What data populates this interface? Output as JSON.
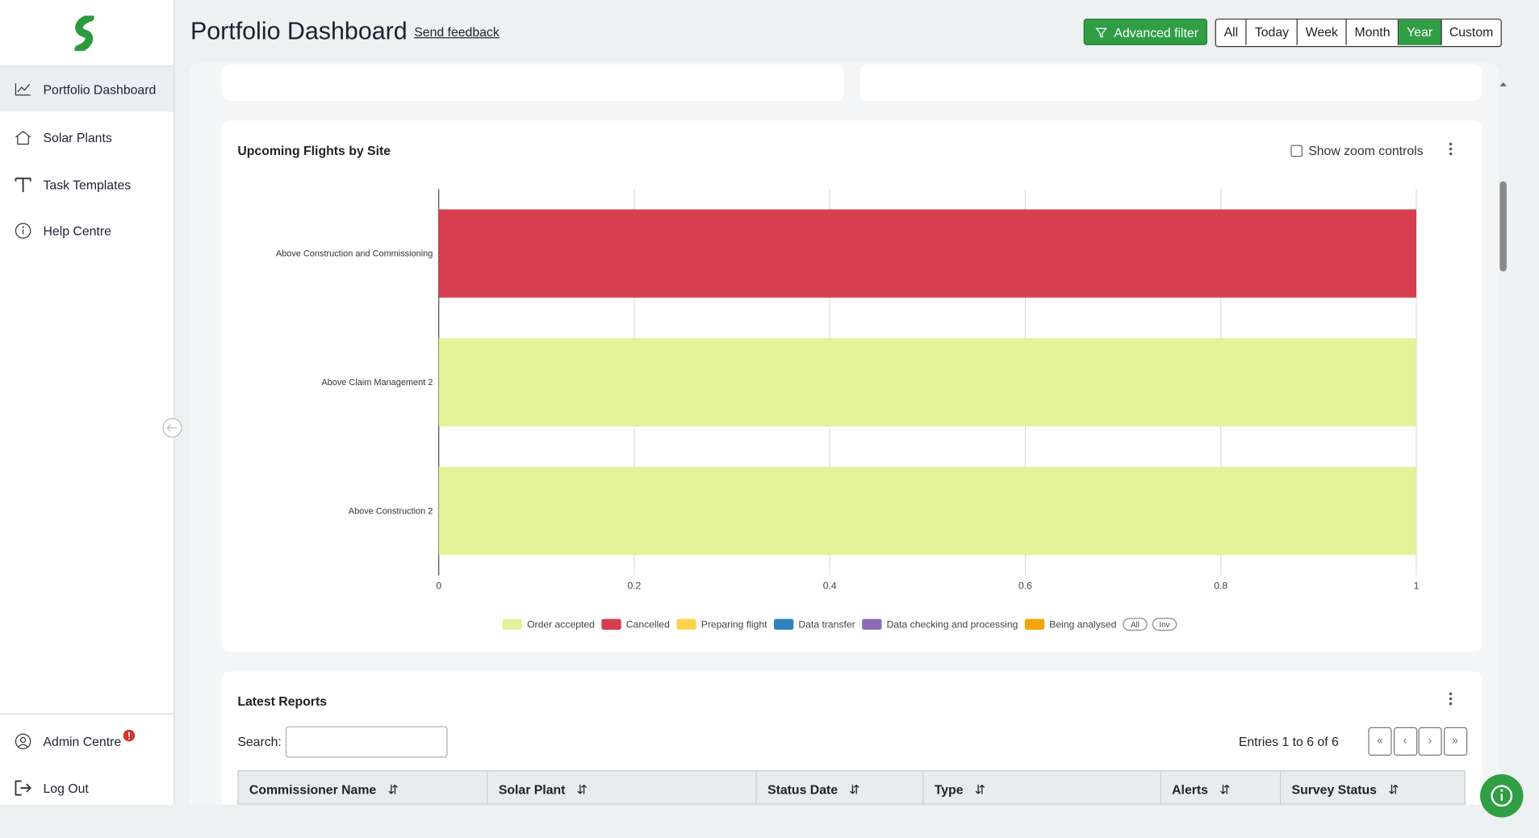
{
  "sidebar": {
    "items": [
      "Portfolio Dashboard",
      "Solar Plants",
      "Task Templates",
      "Help Centre"
    ],
    "bottom": [
      "Admin Centre",
      "Log Out"
    ]
  },
  "header": {
    "title": "Portfolio Dashboard",
    "feedback": "Send feedback",
    "filter": "Advanced filter",
    "ranges": [
      "All",
      "Today",
      "Week",
      "Month",
      "Year",
      "Custom"
    ]
  },
  "chart_data": {
    "type": "stacked-hbar",
    "title": "Upcoming Flights by Site",
    "zoom": "Show zoom controls",
    "categories": [
      "Above Construction and Commissioning",
      "Above Claim Management 2",
      "Above Construction 2"
    ],
    "series": [
      {
        "name": "Order accepted",
        "color": "#e4f29a",
        "values": [
          0,
          1,
          1
        ]
      },
      {
        "name": "Cancelled",
        "color": "#d63d4f",
        "values": [
          1,
          0,
          0
        ]
      },
      {
        "name": "Preparing flight",
        "color": "#fbd44f",
        "values": [
          0,
          0,
          0
        ]
      },
      {
        "name": "Data transfer",
        "color": "#2f84c0",
        "values": [
          0,
          0,
          0
        ]
      },
      {
        "name": "Data checking and processing",
        "color": "#8d6bb7",
        "values": [
          0,
          0,
          0
        ]
      },
      {
        "name": "Being analysed",
        "color": "#f2a60b",
        "values": [
          0,
          0,
          0
        ]
      }
    ],
    "xlim": [
      0,
      1
    ],
    "xticks": [
      0,
      0.2,
      0.4,
      0.6,
      0.8,
      1
    ],
    "grid": true,
    "legend_buttons": [
      "All",
      "Inv"
    ]
  },
  "reports": {
    "title": "Latest Reports",
    "search": "Search:",
    "entries": "Entries 1 to 6 of 6",
    "pager": [
      "«",
      "‹",
      "›",
      "»"
    ],
    "columns": [
      "Commissioner Name",
      "Solar Plant",
      "Status Date",
      "Type",
      "Alerts",
      "Survey Status"
    ]
  }
}
